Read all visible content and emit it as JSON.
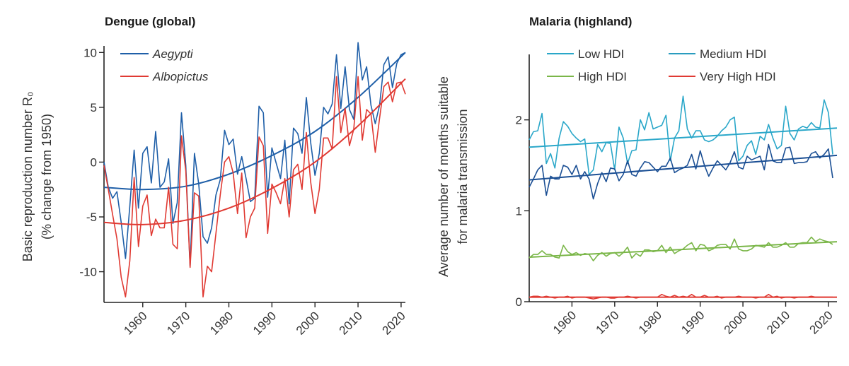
{
  "chart_data": [
    {
      "type": "line",
      "title": "Dengue (global)",
      "ylabel_lines": [
        "Basic reproduction number R₀",
        "(% change from 1950)"
      ],
      "xlabel": "",
      "xlim": [
        1951,
        2021
      ],
      "ylim": [
        -12.8,
        10.6
      ],
      "xticks": [
        1960,
        1970,
        1980,
        1990,
        2000,
        2010,
        2020
      ],
      "yticks": [
        -10,
        -5,
        0,
        5,
        10
      ],
      "legend_position": "top-left",
      "grid": false,
      "x_start": 1951,
      "series": [
        {
          "name": "Aegypti",
          "color": "#1f5fa8",
          "italic": true,
          "values": [
            0,
            -2.3,
            -3.3,
            -2.7,
            -5.5,
            -8.8,
            -4,
            1.1,
            -4.2,
            0.8,
            1.4,
            -1.9,
            2.8,
            -2.3,
            -1.8,
            0.3,
            -5.6,
            -3.7,
            4.5,
            -0.3,
            -9.5,
            0.8,
            -2,
            -6.8,
            -7.4,
            -6,
            -3,
            -1.6,
            2.9,
            1.6,
            2.1,
            -1.1,
            0.5,
            -1.5,
            -3.6,
            -3.3,
            5.1,
            4.5,
            -3.2,
            1.3,
            -0.1,
            -1.5,
            2,
            -3.8,
            3.1,
            2.6,
            0.8,
            5.9,
            1.8,
            -1.2,
            0.8,
            5,
            4.4,
            5.3,
            9.8,
            4.9,
            8.7,
            4.8,
            3.9,
            10.9,
            7.5,
            8.7,
            5.2,
            3.5,
            5.2,
            8.9,
            9.6,
            6.8,
            9,
            9.8,
            10
          ],
          "trend": {
            "x": [
              1951,
              1960,
              1970,
              1980,
              1990,
              2000,
              2010,
              2021
            ],
            "y": [
              -2.3,
              -2.5,
              -2.2,
              -1.1,
              0.6,
              2.8,
              5.9,
              10
            ]
          }
        },
        {
          "name": "Albopictus",
          "color": "#e03a33",
          "italic": true,
          "values": [
            -0.3,
            -2.5,
            -4.8,
            -7,
            -10.5,
            -12.3,
            -9,
            -1.4,
            -7.7,
            -4,
            -3,
            -6.7,
            -5.2,
            -6,
            -6,
            -2.3,
            -7.5,
            -7.9,
            2.4,
            -0.8,
            -9.6,
            -2.8,
            -3.1,
            -12.3,
            -9.5,
            -10,
            -6.5,
            -3,
            0,
            0.5,
            -1,
            -4.7,
            -1,
            -6.9,
            -5,
            -4.2,
            2.3,
            1.5,
            -6.5,
            -2,
            -2.8,
            -3.8,
            -1.5,
            -5,
            -0.7,
            -0.2,
            -2.5,
            2.7,
            -1.8,
            -4.7,
            -2.5,
            2.2,
            2.2,
            1.2,
            7.8,
            2.7,
            4.9,
            1.5,
            3,
            7.8,
            2,
            4.8,
            4.4,
            0.9,
            4,
            6.9,
            7.3,
            5.5,
            7.2,
            7.3,
            6.2
          ],
          "trend": {
            "x": [
              1951,
              1960,
              1970,
              1980,
              1990,
              2000,
              2010,
              2021
            ],
            "y": [
              -5.5,
              -5.7,
              -5.3,
              -4.2,
              -2.4,
              0,
              3.3,
              7.6
            ]
          }
        }
      ]
    },
    {
      "type": "line",
      "title": "Malaria (highland)",
      "ylabel_lines": [
        "Average number of months suitable",
        "for malaria transmission"
      ],
      "xlabel": "",
      "xlim": [
        1950,
        2022
      ],
      "ylim": [
        0,
        2.72
      ],
      "xticks": [
        1960,
        1970,
        1980,
        1990,
        2000,
        2010,
        2020
      ],
      "yticks": [
        0,
        1,
        2
      ],
      "legend_position": "top",
      "grid": false,
      "x_start": 1950,
      "series": [
        {
          "name": "Low HDI",
          "color": "#2aa7c9",
          "italic": false,
          "values": [
            1.78,
            1.87,
            1.88,
            2.07,
            1.52,
            1.63,
            1.47,
            1.8,
            1.98,
            1.93,
            1.85,
            1.8,
            1.76,
            1.79,
            1.4,
            1.45,
            1.73,
            1.65,
            1.75,
            1.74,
            1.45,
            1.92,
            1.8,
            1.52,
            1.66,
            1.67,
            2.0,
            1.89,
            2.08,
            1.9,
            1.92,
            1.94,
            2.05,
            1.55,
            1.8,
            1.88,
            2.26,
            1.9,
            1.8,
            1.88,
            1.88,
            1.78,
            1.76,
            1.78,
            1.82,
            1.88,
            1.92,
            2.0,
            2.03,
            1.55,
            1.6,
            1.72,
            1.77,
            1.62,
            1.82,
            1.78,
            1.95,
            1.8,
            1.68,
            1.72,
            2.15,
            1.85,
            1.78,
            1.9,
            1.93,
            1.91,
            1.97,
            1.92,
            1.91,
            2.22,
            2.08,
            1.62
          ],
          "trend": {
            "x": [
              1950,
              2022
            ],
            "y": [
              1.7,
              1.91
            ]
          }
        },
        {
          "name": "Medium HDI",
          "color": "#1b4f94",
          "legend_color": "#2a9cbf",
          "italic": false,
          "values": [
            1.26,
            1.35,
            1.45,
            1.5,
            1.17,
            1.38,
            1.35,
            1.35,
            1.5,
            1.48,
            1.4,
            1.5,
            1.35,
            1.43,
            1.35,
            1.13,
            1.3,
            1.42,
            1.32,
            1.47,
            1.46,
            1.33,
            1.4,
            1.55,
            1.4,
            1.38,
            1.47,
            1.54,
            1.53,
            1.48,
            1.43,
            1.49,
            1.49,
            1.58,
            1.42,
            1.45,
            1.47,
            1.5,
            1.62,
            1.46,
            1.66,
            1.5,
            1.38,
            1.47,
            1.55,
            1.5,
            1.45,
            1.53,
            1.65,
            1.48,
            1.46,
            1.6,
            1.56,
            1.58,
            1.6,
            1.45,
            1.73,
            1.55,
            1.53,
            1.53,
            1.69,
            1.7,
            1.52,
            1.53,
            1.53,
            1.54,
            1.63,
            1.65,
            1.58,
            1.62,
            1.68,
            1.36
          ],
          "trend": {
            "x": [
              1950,
              2022
            ],
            "y": [
              1.34,
              1.61
            ]
          }
        },
        {
          "name": "High HDI",
          "color": "#7ab648",
          "italic": false,
          "values": [
            0.48,
            0.52,
            0.52,
            0.56,
            0.52,
            0.52,
            0.49,
            0.48,
            0.62,
            0.55,
            0.52,
            0.54,
            0.51,
            0.53,
            0.52,
            0.45,
            0.51,
            0.54,
            0.5,
            0.53,
            0.54,
            0.5,
            0.54,
            0.6,
            0.48,
            0.53,
            0.5,
            0.57,
            0.57,
            0.55,
            0.56,
            0.62,
            0.54,
            0.6,
            0.53,
            0.56,
            0.58,
            0.62,
            0.65,
            0.56,
            0.63,
            0.62,
            0.56,
            0.58,
            0.62,
            0.63,
            0.63,
            0.58,
            0.69,
            0.58,
            0.56,
            0.56,
            0.58,
            0.62,
            0.61,
            0.6,
            0.65,
            0.6,
            0.6,
            0.62,
            0.65,
            0.6,
            0.6,
            0.64,
            0.65,
            0.65,
            0.71,
            0.66,
            0.69,
            0.67,
            0.66,
            0.63
          ],
          "trend": {
            "x": [
              1950,
              2022
            ],
            "y": [
              0.49,
              0.66
            ]
          }
        },
        {
          "name": "Very High HDI",
          "color": "#e03a33",
          "italic": false,
          "values": [
            0.05,
            0.06,
            0.06,
            0.05,
            0.06,
            0.05,
            0.04,
            0.05,
            0.05,
            0.06,
            0.04,
            0.05,
            0.05,
            0.05,
            0.04,
            0.03,
            0.04,
            0.05,
            0.05,
            0.04,
            0.04,
            0.05,
            0.05,
            0.06,
            0.05,
            0.04,
            0.05,
            0.05,
            0.05,
            0.05,
            0.05,
            0.08,
            0.06,
            0.05,
            0.07,
            0.05,
            0.06,
            0.05,
            0.08,
            0.05,
            0.05,
            0.07,
            0.05,
            0.05,
            0.06,
            0.04,
            0.05,
            0.05,
            0.05,
            0.06,
            0.05,
            0.05,
            0.05,
            0.04,
            0.05,
            0.05,
            0.08,
            0.05,
            0.06,
            0.04,
            0.05,
            0.05,
            0.04,
            0.05,
            0.05,
            0.05,
            0.06,
            0.05,
            0.05,
            0.05,
            0.05,
            0.05
          ],
          "trend": {
            "x": [
              1950,
              2022
            ],
            "y": [
              0.05,
              0.05
            ]
          }
        }
      ]
    }
  ]
}
